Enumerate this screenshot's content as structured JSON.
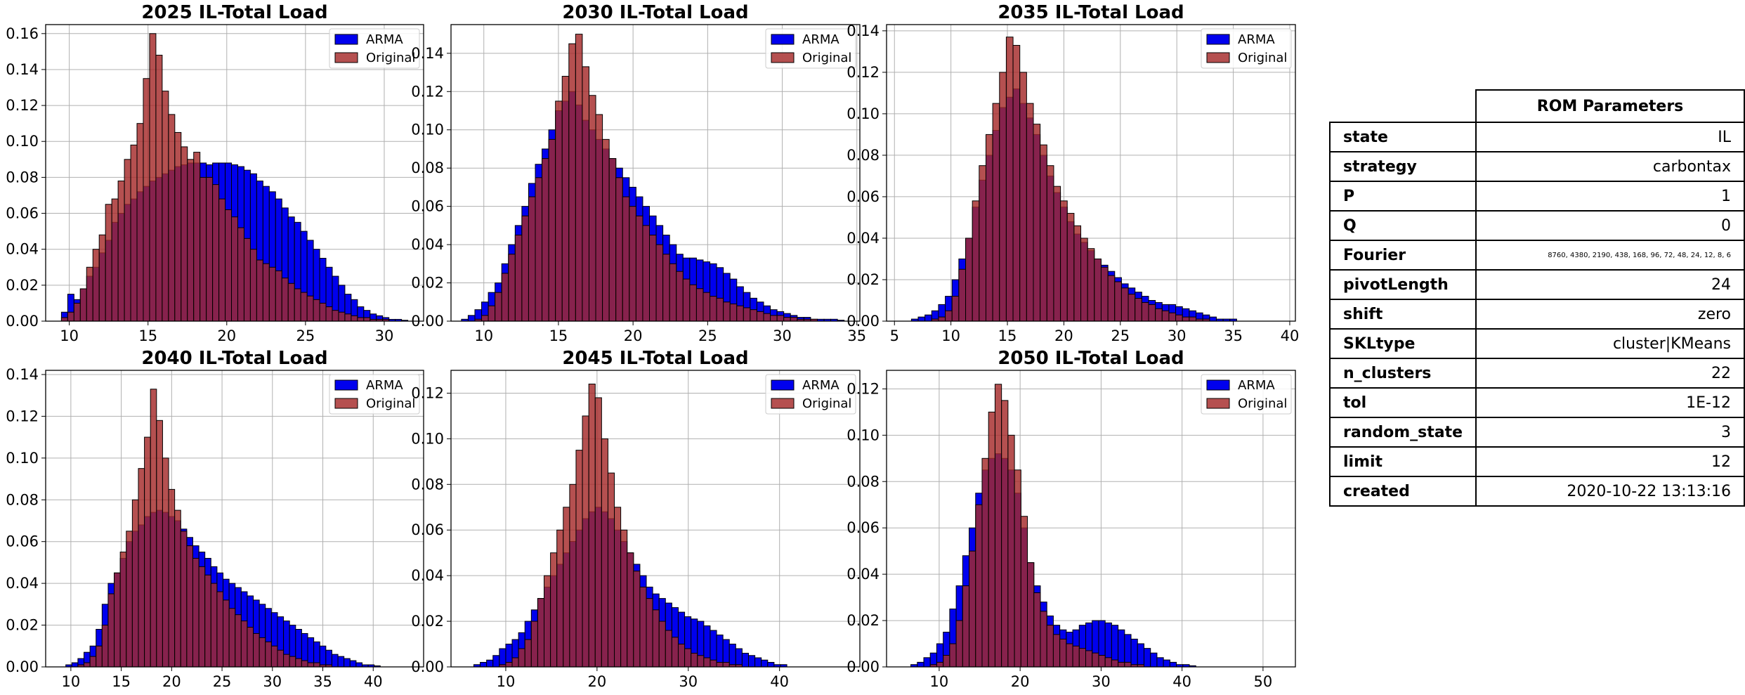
{
  "chart_data": [
    {
      "type": "bar",
      "title": "2025 IL-Total Load",
      "xlim": [
        8.5,
        32.5
      ],
      "xticks": [
        10,
        15,
        20,
        25,
        30
      ],
      "ylim": [
        0,
        0.165
      ],
      "yticks": [
        0.0,
        0.02,
        0.04,
        0.06,
        0.08,
        0.1,
        0.12,
        0.14,
        0.16
      ],
      "bin_start": 9.5,
      "bin_width": 0.4,
      "legend": "top-right",
      "grid": true,
      "series": [
        {
          "name": "ARMA",
          "color": "#0000ee",
          "values": [
            0.005,
            0.015,
            0.012,
            0.018,
            0.025,
            0.03,
            0.038,
            0.045,
            0.055,
            0.06,
            0.065,
            0.068,
            0.072,
            0.075,
            0.078,
            0.08,
            0.082,
            0.084,
            0.086,
            0.087,
            0.088,
            0.088,
            0.088,
            0.087,
            0.088,
            0.088,
            0.088,
            0.087,
            0.086,
            0.084,
            0.082,
            0.078,
            0.075,
            0.072,
            0.068,
            0.063,
            0.058,
            0.055,
            0.05,
            0.045,
            0.04,
            0.035,
            0.03,
            0.025,
            0.02,
            0.015,
            0.012,
            0.008,
            0.006,
            0.004,
            0.003,
            0.002,
            0.001,
            0.001,
            0.0005
          ]
        },
        {
          "name": "Original",
          "color": "#a52a2a",
          "values": [
            0.002,
            0.005,
            0.01,
            0.018,
            0.03,
            0.04,
            0.048,
            0.065,
            0.068,
            0.078,
            0.09,
            0.098,
            0.11,
            0.135,
            0.16,
            0.148,
            0.128,
            0.115,
            0.105,
            0.097,
            0.09,
            0.094,
            0.08,
            0.08,
            0.076,
            0.068,
            0.062,
            0.058,
            0.052,
            0.046,
            0.04,
            0.034,
            0.032,
            0.03,
            0.028,
            0.024,
            0.021,
            0.018,
            0.016,
            0.014,
            0.012,
            0.01,
            0.008,
            0.006,
            0.005,
            0.004,
            0.003,
            0.002,
            0.002,
            0.001,
            0.001,
            0.001,
            0.0,
            0.0,
            0.0
          ]
        }
      ]
    },
    {
      "type": "bar",
      "title": "2030 IL-Total Load",
      "xlim": [
        7.8,
        35.2
      ],
      "xticks": [
        10,
        15,
        20,
        25,
        30,
        35
      ],
      "ylim": [
        0,
        0.155
      ],
      "yticks": [
        0.0,
        0.02,
        0.04,
        0.06,
        0.08,
        0.1,
        0.12,
        0.14
      ],
      "bin_start": 8.5,
      "bin_width": 0.45,
      "legend": "top-right",
      "grid": true,
      "series": [
        {
          "name": "ARMA",
          "color": "#0000ee",
          "values": [
            0.001,
            0.003,
            0.006,
            0.01,
            0.015,
            0.02,
            0.03,
            0.04,
            0.05,
            0.06,
            0.072,
            0.082,
            0.09,
            0.1,
            0.11,
            0.115,
            0.12,
            0.113,
            0.105,
            0.1,
            0.095,
            0.09,
            0.085,
            0.08,
            0.075,
            0.07,
            0.065,
            0.06,
            0.055,
            0.05,
            0.045,
            0.04,
            0.035,
            0.033,
            0.033,
            0.032,
            0.031,
            0.03,
            0.028,
            0.025,
            0.022,
            0.018,
            0.015,
            0.012,
            0.01,
            0.008,
            0.006,
            0.005,
            0.004,
            0.003,
            0.002,
            0.002,
            0.001,
            0.001,
            0.001,
            0.001,
            0.0005,
            0.0,
            0.0,
            0.0
          ]
        },
        {
          "name": "Original",
          "color": "#a52a2a",
          "values": [
            0.0,
            0.0,
            0.001,
            0.003,
            0.008,
            0.015,
            0.025,
            0.035,
            0.045,
            0.055,
            0.065,
            0.075,
            0.085,
            0.095,
            0.115,
            0.128,
            0.145,
            0.15,
            0.133,
            0.118,
            0.108,
            0.095,
            0.085,
            0.075,
            0.065,
            0.06,
            0.055,
            0.05,
            0.045,
            0.04,
            0.035,
            0.03,
            0.026,
            0.022,
            0.019,
            0.017,
            0.015,
            0.013,
            0.012,
            0.01,
            0.009,
            0.008,
            0.007,
            0.006,
            0.005,
            0.004,
            0.003,
            0.003,
            0.002,
            0.002,
            0.001,
            0.001,
            0.001,
            0.0,
            0.0,
            0.0,
            0.0,
            0.0,
            0.0,
            0.0
          ]
        }
      ]
    },
    {
      "type": "bar",
      "title": "2035 IL-Total Load",
      "xlim": [
        4.3,
        40.5
      ],
      "xticks": [
        5,
        10,
        15,
        20,
        25,
        30,
        35,
        40
      ],
      "ylim": [
        0,
        0.143
      ],
      "yticks": [
        0.0,
        0.02,
        0.04,
        0.06,
        0.08,
        0.1,
        0.12,
        0.14
      ],
      "bin_start": 6.5,
      "bin_width": 0.6,
      "legend": "top-right",
      "grid": true,
      "series": [
        {
          "name": "ARMA",
          "color": "#0000ee",
          "values": [
            0.001,
            0.002,
            0.003,
            0.005,
            0.008,
            0.012,
            0.02,
            0.03,
            0.04,
            0.055,
            0.068,
            0.08,
            0.092,
            0.103,
            0.108,
            0.112,
            0.105,
            0.098,
            0.09,
            0.08,
            0.07,
            0.062,
            0.055,
            0.048,
            0.042,
            0.038,
            0.034,
            0.03,
            0.027,
            0.024,
            0.021,
            0.018,
            0.016,
            0.014,
            0.012,
            0.01,
            0.009,
            0.008,
            0.008,
            0.007,
            0.006,
            0.005,
            0.004,
            0.003,
            0.002,
            0.001,
            0.001,
            0.001,
            0.0,
            0.0,
            0.0,
            0.0,
            0.0,
            0.0,
            0.0
          ]
        },
        {
          "name": "Original",
          "color": "#a52a2a",
          "values": [
            0.0,
            0.0,
            0.0,
            0.001,
            0.002,
            0.005,
            0.012,
            0.025,
            0.04,
            0.058,
            0.075,
            0.09,
            0.105,
            0.12,
            0.137,
            0.133,
            0.12,
            0.105,
            0.095,
            0.085,
            0.075,
            0.065,
            0.058,
            0.052,
            0.046,
            0.04,
            0.035,
            0.03,
            0.026,
            0.022,
            0.019,
            0.016,
            0.013,
            0.011,
            0.009,
            0.008,
            0.006,
            0.005,
            0.004,
            0.003,
            0.002,
            0.002,
            0.001,
            0.001,
            0.0,
            0.0,
            0.0,
            0.0,
            0.0,
            0.0,
            0.0,
            0.0,
            0.0,
            0.0,
            0.0
          ]
        }
      ]
    },
    {
      "type": "bar",
      "title": "2040 IL-Total Load",
      "xlim": [
        7.5,
        45.0
      ],
      "xticks": [
        10,
        15,
        20,
        25,
        30,
        35,
        40
      ],
      "ylim": [
        0,
        0.142
      ],
      "yticks": [
        0.0,
        0.02,
        0.04,
        0.06,
        0.08,
        0.1,
        0.12,
        0.14
      ],
      "bin_start": 9.5,
      "bin_width": 0.6,
      "legend": "top-right",
      "grid": true,
      "series": [
        {
          "name": "ARMA",
          "color": "#0000ee",
          "values": [
            0.001,
            0.002,
            0.004,
            0.007,
            0.01,
            0.018,
            0.03,
            0.04,
            0.045,
            0.052,
            0.06,
            0.065,
            0.068,
            0.072,
            0.074,
            0.075,
            0.074,
            0.072,
            0.07,
            0.066,
            0.062,
            0.058,
            0.055,
            0.052,
            0.048,
            0.045,
            0.042,
            0.04,
            0.038,
            0.036,
            0.034,
            0.032,
            0.03,
            0.028,
            0.026,
            0.024,
            0.022,
            0.02,
            0.018,
            0.016,
            0.014,
            0.012,
            0.01,
            0.008,
            0.006,
            0.005,
            0.004,
            0.003,
            0.002,
            0.001,
            0.001,
            0.0005,
            0.0,
            0.0,
            0.0,
            0.0,
            0.0
          ]
        },
        {
          "name": "Original",
          "color": "#a52a2a",
          "values": [
            0.0,
            0.0,
            0.001,
            0.002,
            0.005,
            0.01,
            0.02,
            0.035,
            0.045,
            0.055,
            0.065,
            0.08,
            0.095,
            0.11,
            0.133,
            0.118,
            0.1,
            0.085,
            0.075,
            0.065,
            0.058,
            0.052,
            0.048,
            0.044,
            0.04,
            0.036,
            0.032,
            0.028,
            0.025,
            0.022,
            0.019,
            0.016,
            0.014,
            0.012,
            0.01,
            0.008,
            0.006,
            0.005,
            0.004,
            0.003,
            0.002,
            0.002,
            0.001,
            0.001,
            0.0,
            0.0,
            0.0,
            0.0,
            0.0,
            0.0,
            0.0,
            0.0,
            0.0,
            0.0,
            0.0,
            0.0,
            0.0
          ]
        }
      ]
    },
    {
      "type": "bar",
      "title": "2045 IL-Total Load",
      "xlim": [
        4.0,
        48.8
      ],
      "xticks": [
        10,
        20,
        30,
        40
      ],
      "ylim": [
        0,
        0.13
      ],
      "yticks": [
        0.0,
        0.02,
        0.04,
        0.06,
        0.08,
        0.1,
        0.12
      ],
      "bin_start": 6.5,
      "bin_width": 0.7,
      "legend": "top-right",
      "grid": true,
      "series": [
        {
          "name": "ARMA",
          "color": "#0000ee",
          "values": [
            0.001,
            0.002,
            0.003,
            0.005,
            0.008,
            0.01,
            0.012,
            0.015,
            0.02,
            0.025,
            0.03,
            0.035,
            0.04,
            0.045,
            0.05,
            0.055,
            0.06,
            0.065,
            0.068,
            0.07,
            0.068,
            0.065,
            0.06,
            0.055,
            0.05,
            0.045,
            0.04,
            0.035,
            0.032,
            0.03,
            0.028,
            0.026,
            0.024,
            0.022,
            0.021,
            0.02,
            0.018,
            0.016,
            0.014,
            0.012,
            0.01,
            0.008,
            0.006,
            0.005,
            0.004,
            0.003,
            0.002,
            0.001,
            0.001,
            0.0,
            0.0,
            0.0,
            0.0,
            0.0,
            0.0,
            0.0
          ]
        },
        {
          "name": "Original",
          "color": "#a52a2a",
          "values": [
            0.0,
            0.0,
            0.0,
            0.0,
            0.001,
            0.002,
            0.004,
            0.008,
            0.012,
            0.02,
            0.03,
            0.04,
            0.05,
            0.06,
            0.07,
            0.08,
            0.095,
            0.11,
            0.124,
            0.118,
            0.1,
            0.085,
            0.07,
            0.06,
            0.05,
            0.042,
            0.035,
            0.03,
            0.025,
            0.02,
            0.016,
            0.013,
            0.01,
            0.008,
            0.006,
            0.005,
            0.004,
            0.003,
            0.002,
            0.002,
            0.001,
            0.001,
            0.0,
            0.0,
            0.0,
            0.0,
            0.0,
            0.0,
            0.0,
            0.0,
            0.0,
            0.0,
            0.0,
            0.0,
            0.0,
            0.0
          ]
        }
      ]
    },
    {
      "type": "bar",
      "title": "2050 IL-Total Load",
      "xlim": [
        3.5,
        54.0
      ],
      "xticks": [
        10,
        20,
        30,
        40,
        50
      ],
      "ylim": [
        0,
        0.128
      ],
      "yticks": [
        0.0,
        0.02,
        0.04,
        0.06,
        0.08,
        0.1,
        0.12
      ],
      "bin_start": 6.5,
      "bin_width": 0.8,
      "legend": "top-right",
      "grid": true,
      "series": [
        {
          "name": "ARMA",
          "color": "#0000ee",
          "values": [
            0.001,
            0.002,
            0.004,
            0.006,
            0.01,
            0.015,
            0.025,
            0.035,
            0.048,
            0.06,
            0.075,
            0.085,
            0.09,
            0.092,
            0.09,
            0.085,
            0.075,
            0.06,
            0.045,
            0.035,
            0.028,
            0.022,
            0.018,
            0.016,
            0.015,
            0.016,
            0.018,
            0.019,
            0.02,
            0.02,
            0.019,
            0.018,
            0.016,
            0.014,
            0.012,
            0.01,
            0.008,
            0.006,
            0.004,
            0.003,
            0.002,
            0.001,
            0.001,
            0.0005,
            0.0,
            0.0,
            0.0,
            0.0,
            0.0
          ]
        },
        {
          "name": "Original",
          "color": "#a52a2a",
          "values": [
            0.0,
            0.0,
            0.0,
            0.001,
            0.002,
            0.005,
            0.01,
            0.02,
            0.035,
            0.05,
            0.07,
            0.09,
            0.11,
            0.122,
            0.115,
            0.1,
            0.085,
            0.065,
            0.045,
            0.032,
            0.024,
            0.018,
            0.014,
            0.012,
            0.01,
            0.009,
            0.008,
            0.007,
            0.006,
            0.005,
            0.004,
            0.003,
            0.002,
            0.002,
            0.001,
            0.001,
            0.0,
            0.0,
            0.0,
            0.0,
            0.0,
            0.0,
            0.0,
            0.0,
            0.0,
            0.0,
            0.0,
            0.0,
            0.0
          ]
        }
      ]
    }
  ],
  "table": {
    "header": "ROM Parameters",
    "rows": [
      {
        "key": "state",
        "value": "IL"
      },
      {
        "key": "strategy",
        "value": "carbontax"
      },
      {
        "key": "P",
        "value": "1"
      },
      {
        "key": "Q",
        "value": "0"
      },
      {
        "key": "Fourier",
        "value": "8760, 4380, 2190, 438, 168, 96, 72, 48, 24, 12, 8, 6"
      },
      {
        "key": "pivotLength",
        "value": "24"
      },
      {
        "key": "shift",
        "value": "zero"
      },
      {
        "key": "SKLtype",
        "value": "cluster|KMeans"
      },
      {
        "key": "n_clusters",
        "value": "22"
      },
      {
        "key": "tol",
        "value": "1E-12"
      },
      {
        "key": "random_state",
        "value": "3"
      },
      {
        "key": "limit",
        "value": "12"
      },
      {
        "key": "created",
        "value": "2020-10-22 13:13:16"
      }
    ]
  }
}
